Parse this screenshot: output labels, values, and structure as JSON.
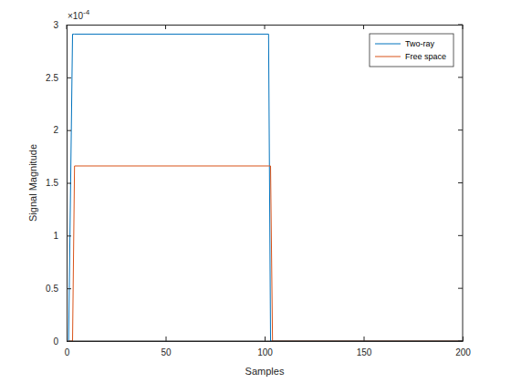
{
  "chart_data": {
    "type": "line",
    "x_label": "Samples",
    "y_label": "Signal Magnitude",
    "y_exponent_label": {
      "base": "×10",
      "exponent": "-4"
    },
    "x": [
      1,
      3,
      4,
      102,
      103,
      104,
      200
    ],
    "series": [
      {
        "name": "Two-ray",
        "color": "#0072bd",
        "values": [
          0,
          0.000291,
          0.000291,
          0.000291,
          0,
          0,
          0
        ]
      },
      {
        "name": "Free space",
        "color": "#d95319",
        "values": [
          0,
          0,
          0.000166,
          0.000166,
          0.000166,
          0,
          0
        ]
      }
    ],
    "xlim": [
      0,
      200
    ],
    "xticks": [
      0,
      50,
      100,
      150,
      200
    ],
    "ylim": [
      0,
      0.0003
    ],
    "yticks": [
      {
        "value": 0,
        "label": "0"
      },
      {
        "value": 5e-05,
        "label": "0.5"
      },
      {
        "value": 0.0001,
        "label": "1"
      },
      {
        "value": 0.00015,
        "label": "1.5"
      },
      {
        "value": 0.0002,
        "label": "2"
      },
      {
        "value": 0.00025,
        "label": "2.5"
      },
      {
        "value": 0.0003,
        "label": "3"
      }
    ],
    "grid": false,
    "legend": "northeast"
  }
}
